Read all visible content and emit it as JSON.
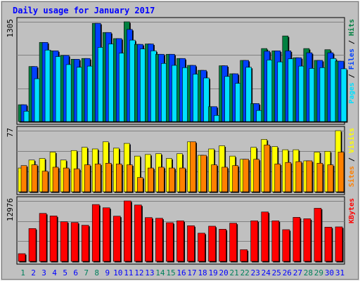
{
  "chart_data": {
    "type": "bar",
    "title": "Daily usage for January 2017",
    "categories": [
      "1",
      "2",
      "3",
      "4",
      "5",
      "6",
      "7",
      "8",
      "9",
      "10",
      "11",
      "12",
      "13",
      "14",
      "15",
      "16",
      "17",
      "18",
      "19",
      "20",
      "21",
      "22",
      "23",
      "24",
      "25",
      "26",
      "27",
      "28",
      "29",
      "30",
      "31"
    ],
    "weekend_days": [
      "1",
      "7",
      "8",
      "14",
      "15",
      "21",
      "22",
      "28",
      "29"
    ],
    "panels": [
      {
        "id": "hits",
        "ymax": 1305,
        "ymax_label": "1305",
        "side_label_parts": [
          "Pages",
          " / ",
          "Files",
          " / ",
          "Hits"
        ],
        "series": [
          {
            "name": "Hits",
            "color": "#008040",
            "values": [
              220,
              720,
              1035,
              925,
              865,
              815,
              825,
              1285,
              1165,
              1085,
              1305,
              1010,
              1015,
              880,
              880,
              825,
              735,
              670,
              195,
              730,
              625,
              800,
              235,
              955,
              925,
              1120,
              835,
              955,
              800,
              940,
              790
            ]
          },
          {
            "name": "Files",
            "color": "#0040ff",
            "values": [
              220,
              720,
              1035,
              925,
              865,
              815,
              825,
              1285,
              1165,
              1085,
              1205,
              1010,
              1015,
              880,
              880,
              825,
              735,
              670,
              195,
              730,
              625,
              800,
              235,
              920,
              925,
              925,
              835,
              900,
              800,
              900,
              790
            ]
          },
          {
            "name": "Pages",
            "color": "#00e0ff",
            "values": [
              135,
              560,
              935,
              850,
              745,
              710,
              725,
              970,
              1015,
              895,
              1065,
              950,
              925,
              760,
              735,
              705,
              620,
              570,
              80,
              590,
              500,
              710,
              145,
              805,
              780,
              820,
              725,
              695,
              705,
              825,
              690
            ]
          }
        ]
      },
      {
        "id": "visits",
        "ymax": 77,
        "ymax_label": "77",
        "side_label_parts": [
          "Sites",
          " / ",
          "Visits"
        ],
        "series": [
          {
            "name": "Visits",
            "color": "#ffff00",
            "values": [
              30,
              40,
              42,
              50,
              40,
              52,
              56,
              54,
              63,
              55,
              61,
              45,
              47,
              48,
              42,
              48,
              63,
              46,
              54,
              58,
              45,
              41,
              56,
              66,
              57,
              53,
              53,
              39,
              50,
              51,
              77
            ]
          },
          {
            "name": "Sites",
            "color": "#ff8000",
            "values": [
              33,
              34,
              26,
              31,
              30,
              29,
              34,
              35,
              36,
              35,
              34,
              18,
              30,
              31,
              30,
              30,
              63,
              46,
              34,
              31,
              33,
              41,
              41,
              59,
              35,
              37,
              38,
              39,
              36,
              34,
              50
            ]
          }
        ]
      },
      {
        "id": "kbytes",
        "ymax": 12976,
        "ymax_label": "12976",
        "side_label_parts": [
          "KBytes"
        ],
        "series": [
          {
            "name": "KBytes",
            "color": "#ff0000",
            "values": [
              1650,
              7050,
              10300,
              9750,
              8500,
              8350,
              7750,
              12200,
              11500,
              9700,
              12976,
              12100,
              9400,
              9250,
              8300,
              8700,
              7650,
              6050,
              7550,
              6900,
              8200,
              2500,
              8700,
              10600,
              8700,
              6800,
              9450,
              9150,
              11400,
              7350,
              7400
            ]
          }
        ]
      }
    ]
  },
  "colors": {
    "background": "#c0c0c0",
    "plot_background": "#c0c0c0",
    "title": "#0000ff",
    "day_label": "#0000ff",
    "weekend_day_label": "#00805c",
    "axis_label": "#000000",
    "grid": "#808080",
    "panel_border": "#000000",
    "bar_shadow": "#000000"
  }
}
